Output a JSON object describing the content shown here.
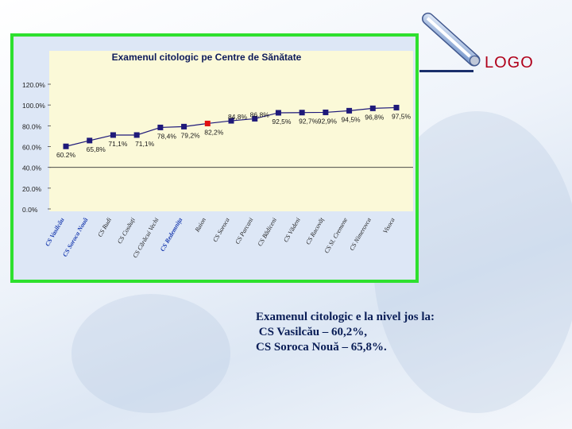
{
  "logo": "LOGO",
  "caption": {
    "line1": "Examenul citologic e la nivel jos la:",
    "line2": " CS Vasilcău – 60,2%,",
    "line3": "CS Soroca Nouă – 65,8%."
  },
  "colors": {
    "frame": "#2ee02e",
    "plot_bg": "#fbf9d8",
    "series": "#1f1a7a",
    "highlight": "#e01010",
    "category_blue": "#1e3fb0",
    "category_dark": "#1a1a1a"
  },
  "chart_data": {
    "type": "line",
    "title": "Examenul citologic  pe Centre de Sănătate",
    "ylim": [
      0,
      120
    ],
    "yticks": [
      "0.0%",
      "20.0%",
      "40.0%",
      "60.0%",
      "80.0%",
      "100.0%",
      "120.0%"
    ],
    "grid": false,
    "legend": "none",
    "categories": [
      "CS Vasilcău",
      "CS Soroca Nouă",
      "CS Rudi",
      "CS Cosăuți",
      "CS Cărăcui Vechi",
      "CS Redemnița",
      "Raion",
      "CS Soroca",
      "CS Parcani",
      "CS Bădiceni",
      "CS Vădeni",
      "CS Racovăț",
      "CS Sl. Cremene",
      "CS Nimerovca",
      "Visoca"
    ],
    "category_styles": [
      "blue",
      "blue",
      "dark",
      "dark",
      "dark",
      "blue",
      "dark",
      "dark",
      "dark",
      "dark",
      "dark",
      "dark",
      "dark",
      "dark",
      "dark"
    ],
    "values": [
      60.2,
      65.8,
      71.1,
      71.1,
      78.4,
      79.2,
      82.2,
      84.8,
      86.8,
      92.5,
      92.7,
      92.9,
      94.5,
      96.8,
      97.5
    ],
    "labels": [
      "60.2%",
      "65,8%",
      "71,1%",
      "71,1%",
      "78,4%",
      "79,2%",
      "82,2%",
      "84,8%",
      "86.8%",
      "92,5%",
      "92,7%",
      "92,9%",
      "94,5%",
      "96,8%",
      "97,5%"
    ],
    "highlight_index": 6,
    "reference_line": 40
  }
}
